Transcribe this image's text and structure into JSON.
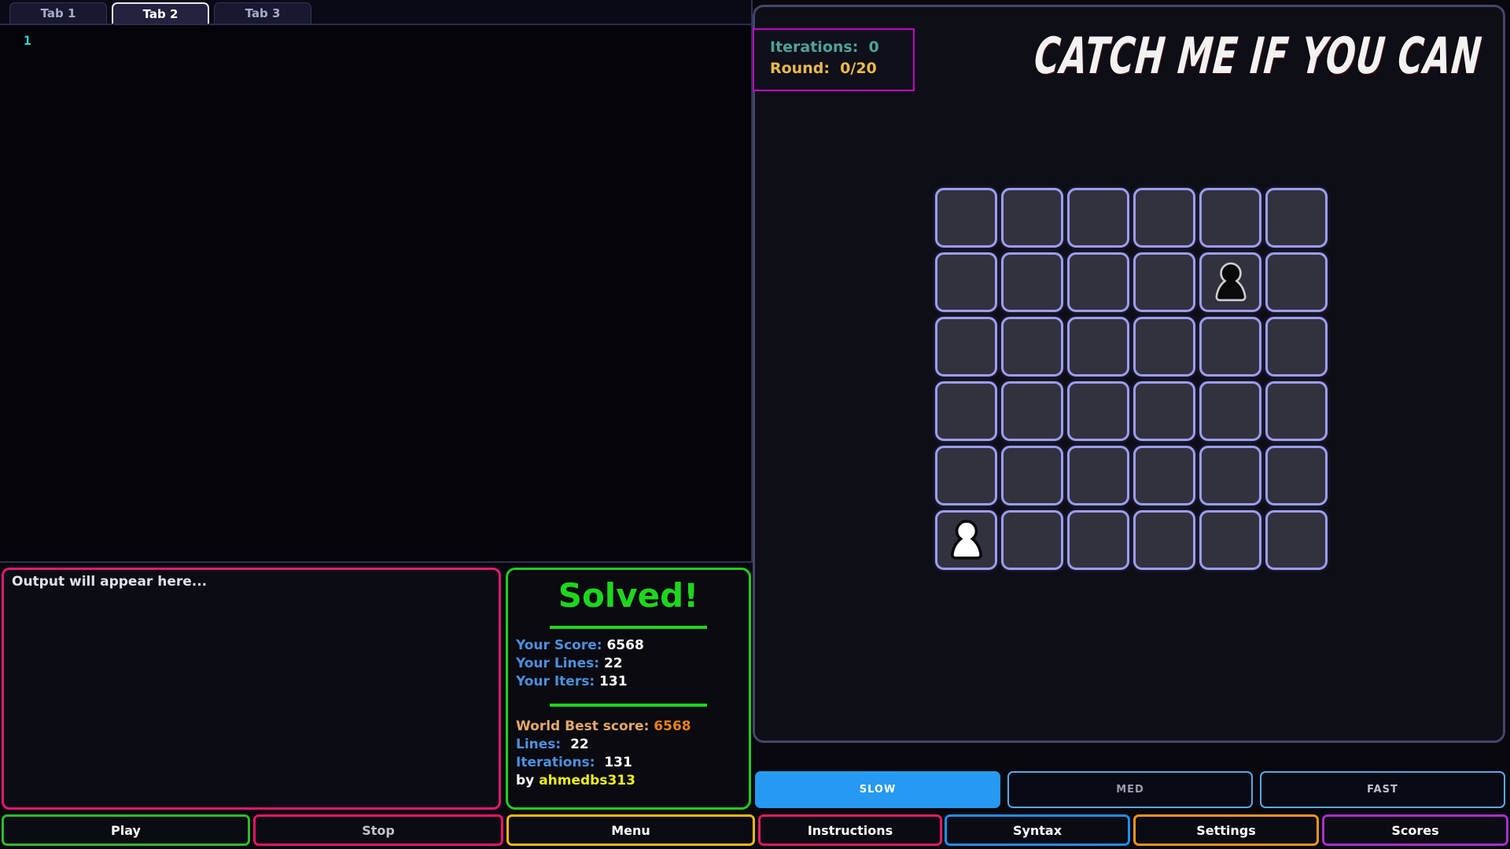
{
  "colors": {
    "page_bg": "#08080e",
    "editor_bg": "#04040a",
    "panel_border": "#45456b",
    "cell_border": "#9d9df0",
    "cell_bg": "#32323f",
    "hud_border": "#c503c5",
    "hud_iterations": "#4fa399",
    "hud_round": "#eab94d",
    "solved_green": "#1ed61e",
    "output_pink": "#e61775",
    "label_blue": "#4d90dd",
    "world_tan": "#e3a86b",
    "world_orange": "#e8811c",
    "user_yellow": "#f0ee12",
    "line_number_cyan": "#2fd6d6",
    "slow_blue": "#2699f2"
  },
  "tabs": {
    "items": [
      {
        "label": "Tab 1",
        "active": false
      },
      {
        "label": "Tab 2",
        "active": true
      },
      {
        "label": "Tab 3",
        "active": false
      }
    ]
  },
  "editor": {
    "line_number": "1"
  },
  "output": {
    "text": "Output will appear here..."
  },
  "solved": {
    "title": "Solved!",
    "your": [
      {
        "label": "Your Score:",
        "value": "6568"
      },
      {
        "label": "Your Lines:",
        "value": "22"
      },
      {
        "label": "Your Iters:",
        "value": "131"
      }
    ],
    "world": {
      "score_label": "World Best score:",
      "score": "6568",
      "lines_label": "Lines:",
      "lines": "22",
      "iters_label": "Iterations:",
      "iters": "131",
      "by_label": "by",
      "by_user": "ahmedbs313"
    }
  },
  "game": {
    "title": "CATCH ME IF YOU CAN",
    "hud": {
      "iterations_label": "Iterations:",
      "iterations": "0",
      "round_label": "Round:",
      "round": "0/20"
    },
    "grid": {
      "rows": 6,
      "cols": 6
    },
    "pieces": [
      {
        "row": 1,
        "col": 4,
        "color": "black"
      },
      {
        "row": 5,
        "col": 0,
        "color": "white"
      }
    ]
  },
  "speed": {
    "options": [
      {
        "label": "SLOW",
        "active": true
      },
      {
        "label": "MED",
        "active": false
      },
      {
        "label": "FAST",
        "active": false
      }
    ]
  },
  "actions": [
    {
      "label": "Play",
      "border": "#2fbc2f"
    },
    {
      "label": "Stop",
      "border": "#ec1469"
    },
    {
      "label": "Menu",
      "border": "#eeb90d"
    },
    {
      "label": "Instructions",
      "border": "#e11d5f"
    },
    {
      "label": "Syntax",
      "border": "#1e90f0"
    },
    {
      "label": "Settings",
      "border": "#f0941c"
    },
    {
      "label": "Scores",
      "border": "#aa2fd0"
    }
  ]
}
